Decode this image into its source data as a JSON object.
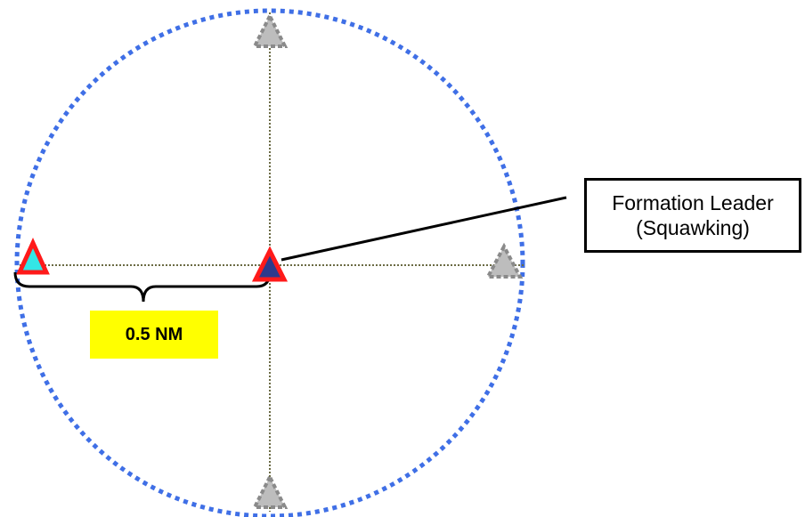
{
  "callout": {
    "line1": "Formation Leader",
    "line2": "(Squawking)"
  },
  "distance_label": "0.5 NM",
  "colors": {
    "range_ring": "#3f6fe6",
    "crosshair": "#6b6b45",
    "leader_fill": "#2e3a8c",
    "wingman_fill": "#33e6e6",
    "aircraft_outline": "#ff1a1a",
    "ghost_fill": "#bdbdbd",
    "ghost_outline": "#8a8a8a",
    "label_background": "#ffff00"
  },
  "icons": {
    "leader": "triangle-aircraft-icon",
    "wingman": "triangle-aircraft-icon",
    "ghost_positions": "triangle-outline-icon"
  }
}
